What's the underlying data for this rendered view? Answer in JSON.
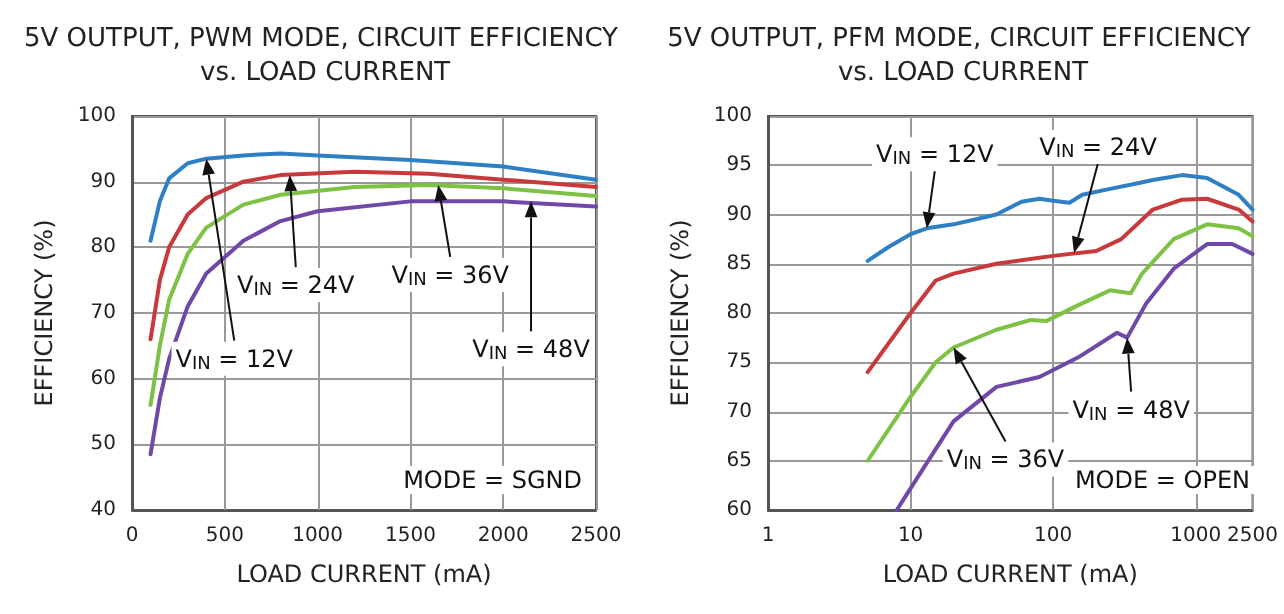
{
  "chart_data": [
    {
      "type": "line",
      "title": "5V OUTPUT, PWM MODE, CIRCUIT EFFICIENCY vs. LOAD CURRENT",
      "xlabel": "LOAD CURRENT (mA)",
      "ylabel": "EFFICIENCY (%)",
      "xlim": [
        0,
        2500
      ],
      "xticks": [
        0,
        500,
        1000,
        1500,
        2000,
        2500
      ],
      "ylim": [
        40,
        100
      ],
      "yticks": [
        40,
        50,
        60,
        70,
        80,
        90,
        100
      ],
      "grid": true,
      "marker": "none",
      "line_style": "solid",
      "series": [
        {
          "color": "#2e7fc4",
          "x": [
            100,
            150,
            200,
            300,
            400,
            600,
            800,
            1000,
            1500,
            2000,
            2500
          ],
          "values": [
            81,
            87,
            90.5,
            92.8,
            93.5,
            94,
            94.3,
            94,
            93.3,
            92.3,
            90.3
          ]
        },
        {
          "color": "#c8393b",
          "x": [
            100,
            150,
            200,
            300,
            400,
            600,
            800,
            1200,
            1600,
            2000,
            2500
          ],
          "values": [
            66,
            75,
            80,
            85,
            87.5,
            90,
            91,
            91.5,
            91.2,
            90.3,
            89.2
          ]
        },
        {
          "color": "#7dc244",
          "x": [
            100,
            150,
            200,
            300,
            400,
            600,
            800,
            1200,
            1600,
            2000,
            2500
          ],
          "values": [
            56,
            65,
            72,
            79,
            83,
            86.5,
            88,
            89.2,
            89.5,
            89,
            87.8
          ]
        },
        {
          "color": "#7048a8",
          "x": [
            100,
            150,
            200,
            300,
            400,
            600,
            800,
            1000,
            1500,
            2000,
            2500
          ],
          "values": [
            48.5,
            57,
            63,
            71,
            76,
            81,
            84,
            85.5,
            87,
            87,
            86.2
          ]
        }
      ],
      "annotations": [
        {
          "text": "V$_{IN}$ = 12V",
          "x": 400,
          "y": 93.5
        },
        {
          "text": "V$_{IN}$ = 24V",
          "x": 850,
          "y": 91
        },
        {
          "text": "V$_{IN}$ = 36V",
          "x": 1650,
          "y": 89.5
        },
        {
          "text": "V$_{IN}$ = 48V",
          "x": 2150,
          "y": 87
        },
        "MODE = SGND"
      ]
    },
    {
      "type": "line",
      "title": "5V OUTPUT, PFM MODE, CIRCUIT EFFICIENCY vs. LOAD CURRENT",
      "xlabel": "LOAD CURRENT (mA)",
      "ylabel": "EFFICIENCY (%)",
      "log": "x",
      "xlim": [
        1,
        2500
      ],
      "xticks": [
        1,
        10,
        100,
        1000,
        2500
      ],
      "ylim": [
        60,
        100
      ],
      "yticks": [
        60,
        65,
        70,
        75,
        80,
        85,
        90,
        95,
        100
      ],
      "grid": true,
      "marker": "none",
      "line_style": "solid",
      "series": [
        {
          "color": "#2e7fc4",
          "x": [
            5,
            7,
            10,
            13,
            20,
            40,
            60,
            80,
            100,
            130,
            160,
            250,
            400,
            500,
            800,
            1200,
            2000,
            2500
          ],
          "values": [
            85.3,
            86.7,
            88,
            88.6,
            89,
            90,
            91.3,
            91.6,
            91.4,
            91.2,
            92,
            92.6,
            93.2,
            93.5,
            94,
            93.7,
            92,
            90.5
          ]
        },
        {
          "color": "#c8393b",
          "x": [
            5,
            10,
            15,
            20,
            40,
            100,
            200,
            300,
            500,
            800,
            1200,
            2000,
            2500
          ],
          "values": [
            74,
            80,
            83.3,
            84,
            85,
            85.8,
            86.3,
            87.5,
            90.5,
            91.5,
            91.6,
            90.5,
            89.3
          ]
        },
        {
          "color": "#7dc244",
          "x": [
            5,
            10,
            15,
            20,
            40,
            70,
            90,
            150,
            250,
            350,
            420,
            700,
            1200,
            2000,
            2500
          ],
          "values": [
            65,
            71.5,
            75,
            76.5,
            78.3,
            79.3,
            79.2,
            80.8,
            82.3,
            82,
            84,
            87.5,
            89,
            88.6,
            87.8
          ]
        },
        {
          "color": "#7048a8",
          "x": [
            8,
            12,
            20,
            40,
            80,
            150,
            280,
            330,
            450,
            700,
            1200,
            1800,
            2500
          ],
          "values": [
            60,
            64,
            69,
            72.5,
            73.5,
            75.5,
            78,
            77.5,
            81,
            84.5,
            87,
            87,
            86
          ]
        }
      ],
      "annotations": [
        {
          "text": "V$_{IN}$ = 12V",
          "x": 13,
          "y": 88.6
        },
        {
          "text": "V$_{IN}$ = 24V",
          "x": 140,
          "y": 86.1
        },
        {
          "text": "V$_{IN}$ = 36V",
          "x": 20,
          "y": 76.5
        },
        {
          "text": "V$_{IN}$ = 48V",
          "x": 330,
          "y": 77.5
        },
        "MODE = OPEN"
      ]
    }
  ]
}
